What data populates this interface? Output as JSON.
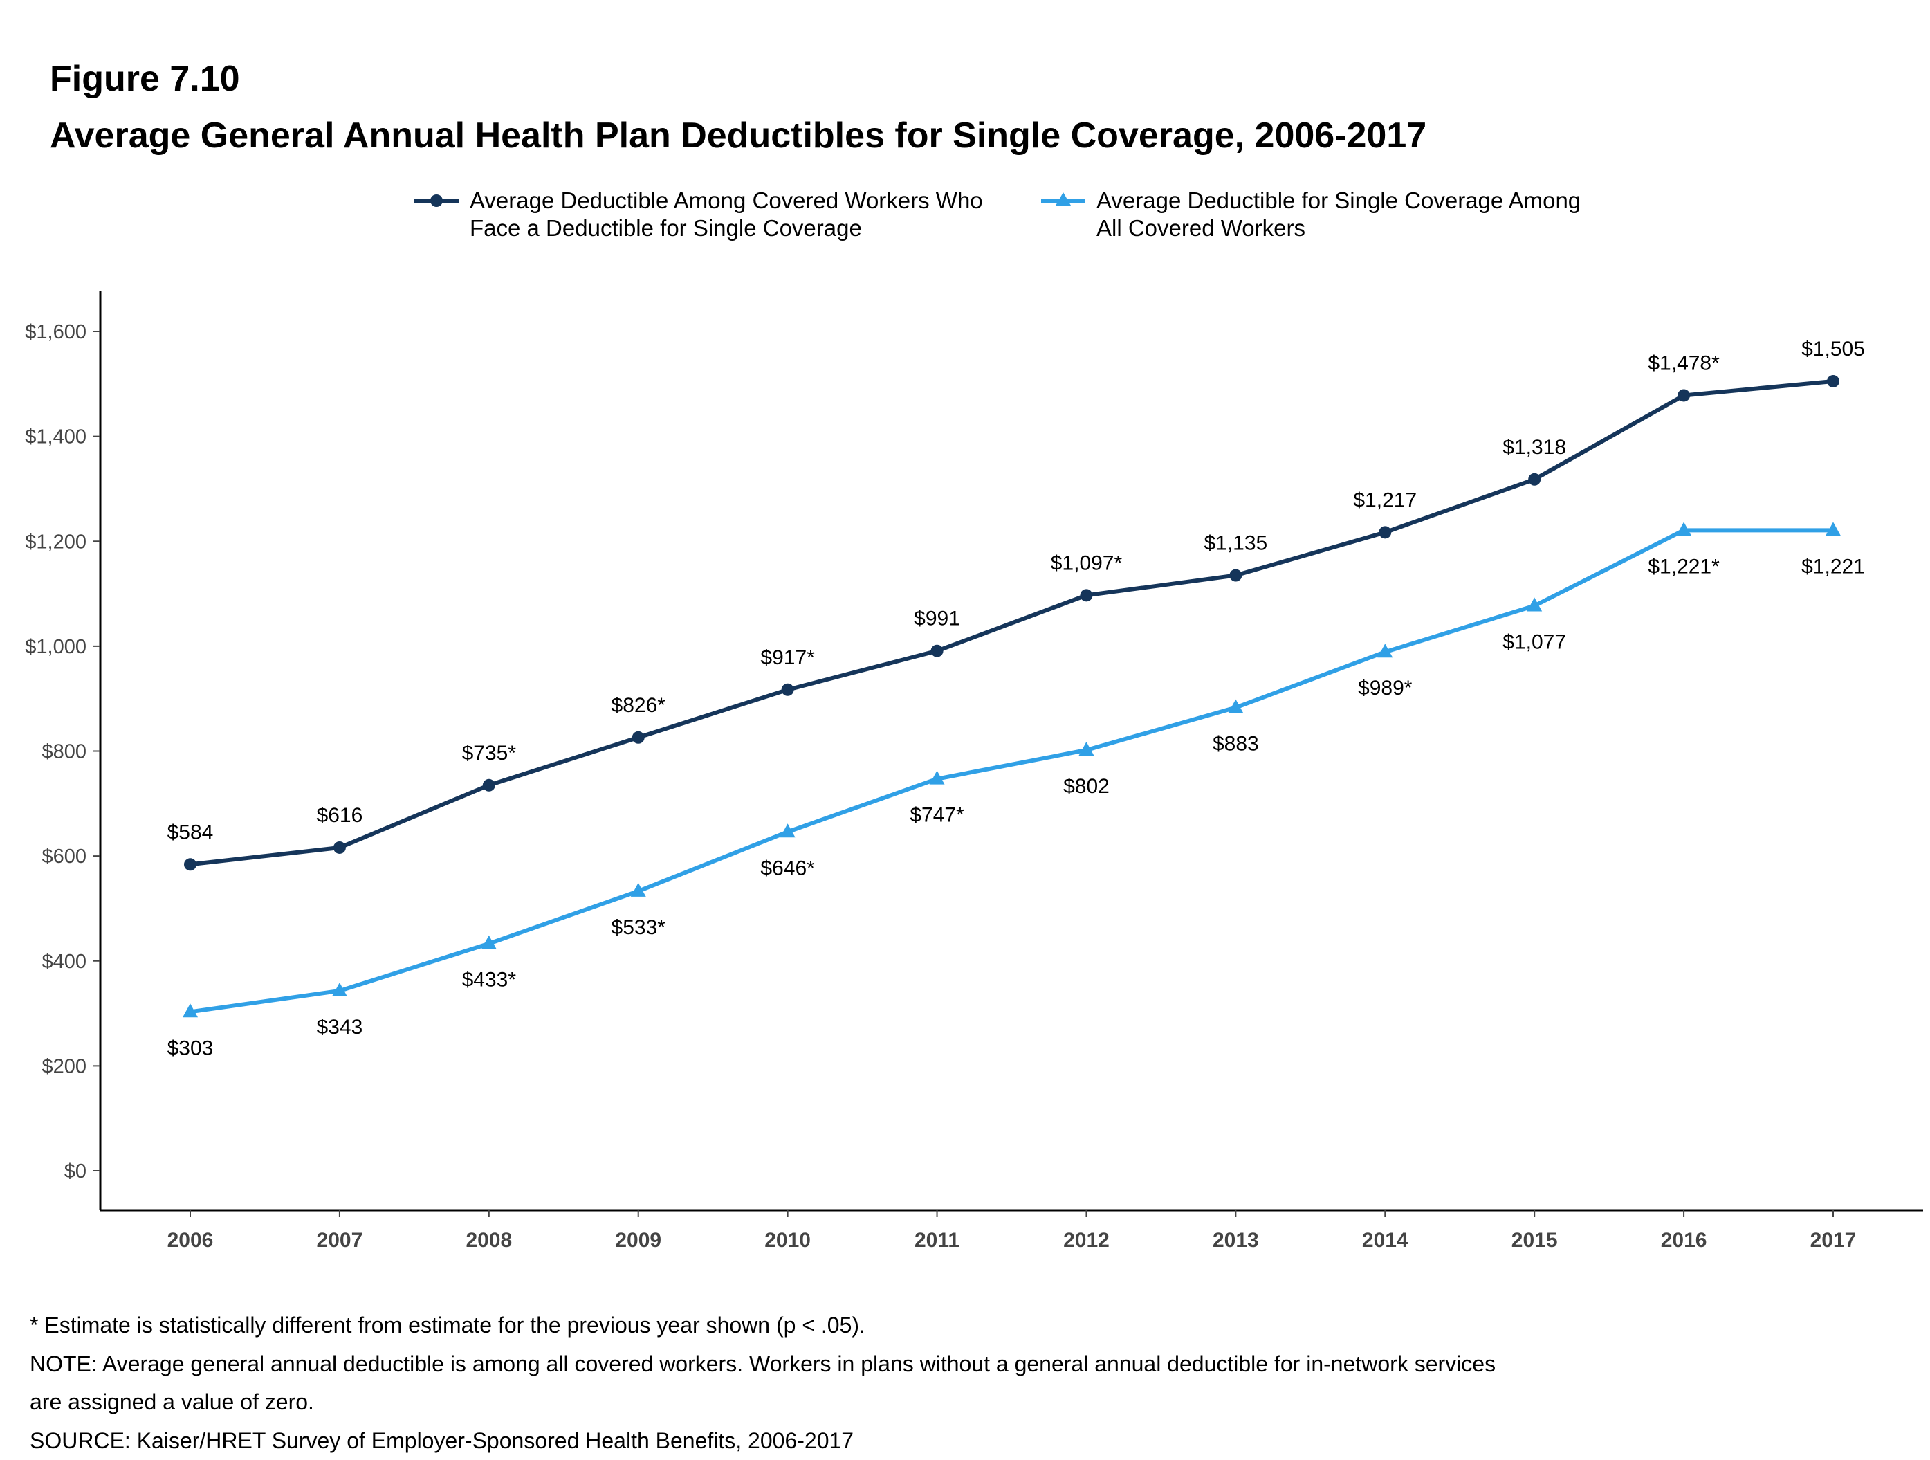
{
  "figure_label": "Figure 7.10",
  "colors": {
    "navy": "#15355a",
    "blue": "#30a0e6"
  },
  "chart_data": {
    "type": "line",
    "title": "Average General Annual Health Plan Deductibles for Single Coverage, 2006-2017",
    "xlabel": "",
    "ylabel": "",
    "categories": [
      "2006",
      "2007",
      "2008",
      "2009",
      "2010",
      "2011",
      "2012",
      "2013",
      "2014",
      "2015",
      "2016",
      "2017"
    ],
    "ylim": [
      0,
      1600
    ],
    "yticks": [
      0,
      200,
      400,
      600,
      800,
      1000,
      1200,
      1400,
      1600
    ],
    "ytick_labels": [
      "$0",
      "$200",
      "$400",
      "$600",
      "$800",
      "$1,000",
      "$1,200",
      "$1,400",
      "$1,600"
    ],
    "legend_position": "top-center",
    "grid": false,
    "series": [
      {
        "name": "Average Deductible Among Covered Workers Who Face a Deductible for Single Coverage",
        "legend_lines": [
          "Average Deductible Among Covered Workers Who",
          "Face a Deductible for Single Coverage"
        ],
        "marker": "circle",
        "color": "#15355a",
        "label_position": "above",
        "values": [
          584,
          616,
          735,
          826,
          917,
          991,
          1097,
          1135,
          1217,
          1318,
          1478,
          1505
        ],
        "labels": [
          "$584",
          "$616",
          "$735*",
          "$826*",
          "$917*",
          "$991",
          "$1,097*",
          "$1,135",
          "$1,217",
          "$1,318",
          "$1,478*",
          "$1,505"
        ]
      },
      {
        "name": "Average Deductible for Single Coverage Among All Covered Workers",
        "legend_lines": [
          "Average Deductible for Single Coverage Among",
          "All Covered Workers"
        ],
        "marker": "triangle",
        "color": "#30a0e6",
        "label_position": "below",
        "values": [
          303,
          343,
          433,
          533,
          646,
          747,
          802,
          883,
          989,
          1077,
          1221,
          1221
        ],
        "labels": [
          "$303",
          "$343",
          "$433*",
          "$533*",
          "$646*",
          "$747*",
          "$802",
          "$883",
          "$989*",
          "$1,077",
          "$1,221*",
          "$1,221"
        ]
      }
    ]
  },
  "notes": [
    "* Estimate is statistically different from estimate for the previous year shown (p < .05).",
    "NOTE: Average general annual deductible is among all covered workers. Workers in plans without a general annual deductible for in-network services",
    "are assigned a value of zero.",
    "SOURCE: Kaiser/HRET Survey of Employer-Sponsored Health Benefits, 2006-2017"
  ]
}
